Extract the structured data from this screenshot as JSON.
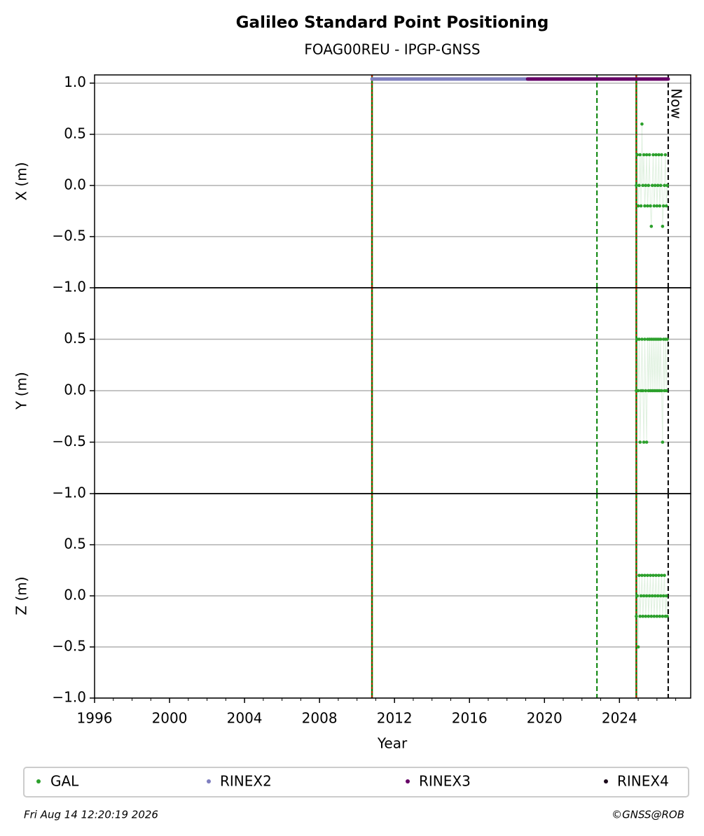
{
  "chart_data": {
    "type": "scatter",
    "title": "Galileo Standard Point Positioning",
    "subtitle": "FOAG00REU - IPGP-GNSS",
    "xlabel": "Year",
    "xlim": [
      1996,
      2027.8
    ],
    "xticks": [
      1996,
      2000,
      2004,
      2008,
      2012,
      2016,
      2020,
      2024
    ],
    "xminor_step": 1,
    "grid": true,
    "x": [
      2024.9,
      2024.95,
      2025.0,
      2025.05,
      2025.1,
      2025.15,
      2025.2,
      2025.25,
      2025.3,
      2025.35,
      2025.4,
      2025.45,
      2025.5,
      2025.55,
      2025.6,
      2025.65,
      2025.7,
      2025.75,
      2025.8,
      2025.85,
      2025.9,
      2025.95,
      2026.0,
      2026.05,
      2026.1,
      2026.15,
      2026.2,
      2026.25,
      2026.3,
      2026.35,
      2026.4,
      2026.45,
      2026.5,
      2026.55
    ],
    "panels": [
      {
        "ylabel": "X (m)",
        "ylim": [
          -1,
          1.08
        ],
        "yticks": [
          {
            "value": -1,
            "label": "−1.0"
          },
          {
            "value": -0.5,
            "label": "−0.5"
          },
          {
            "value": 0,
            "label": "0.0"
          },
          0.5,
          {
            "value": 1,
            "label": "1.0"
          }
        ],
        "values": [
          0,
          0.3,
          -0.2,
          0,
          0.3,
          -0.2,
          0.6,
          0,
          0.3,
          -0.2,
          0,
          0.3,
          -0.2,
          0,
          0.3,
          -0.2,
          -0.4,
          0,
          0.3,
          -0.2,
          0,
          0.3,
          -0.2,
          0,
          0.3,
          -0.2,
          0,
          0.3,
          -0.4,
          -0.2,
          0,
          0.3,
          -0.2,
          0
        ]
      },
      {
        "ylabel": "Y (m)",
        "ylim": [
          -1,
          1
        ],
        "yticks": [
          {
            "value": -1,
            "label": "−1.0"
          },
          {
            "value": -0.5,
            "label": "−0.5"
          },
          {
            "value": 0,
            "label": "0.0"
          },
          0.5
        ],
        "values": [
          0,
          0.5,
          0,
          0.5,
          -0.5,
          0,
          0.5,
          0,
          -0.5,
          0.5,
          0,
          -0.5,
          0.5,
          0,
          0.5,
          0,
          0.5,
          0,
          0.5,
          0,
          0.5,
          0,
          0.5,
          0,
          0.5,
          0,
          0.5,
          0,
          -0.5,
          0.5,
          0,
          0.5,
          0,
          0.5
        ]
      },
      {
        "ylabel": "Z (m)",
        "ylim": [
          -1,
          1
        ],
        "yticks": [
          {
            "value": -1,
            "label": "−1.0"
          },
          {
            "value": -0.5,
            "label": "−0.5"
          },
          {
            "value": 0,
            "label": "0.0"
          },
          0.5
        ],
        "values": [
          -0.2,
          0,
          -0.5,
          0.2,
          -0.2,
          0,
          0.2,
          -0.2,
          0,
          0.2,
          -0.2,
          0,
          0.2,
          -0.2,
          0,
          0.2,
          -0.2,
          0,
          0.2,
          -0.2,
          0,
          0.2,
          -0.2,
          0,
          0.2,
          -0.2,
          0,
          0.2,
          -0.2,
          0,
          0.2,
          -0.2,
          0,
          -0.2
        ]
      }
    ],
    "series": [
      {
        "name": "GAL",
        "color": "#2ca02c"
      },
      {
        "name": "RINEX2",
        "color": "#7f7fbf",
        "x": [
          2010.8,
          2022.8
        ],
        "y": 1.04
      },
      {
        "name": "RINEX3",
        "color": "#660066",
        "x": [
          2019.1,
          2026.6
        ],
        "y": 1.04
      },
      {
        "name": "RINEX4",
        "color": "#1a0a1a"
      }
    ],
    "events": [
      {
        "x": 2010.8,
        "color": "#008000",
        "color2": "#ff0000"
      },
      {
        "x": 2022.8,
        "color": "#008000"
      },
      {
        "x": 2024.9,
        "color": "#008000",
        "color2": "#ff0000"
      },
      {
        "x": 2026.6,
        "color": "#000000",
        "label": "Now"
      }
    ],
    "footer_left": "Fri Aug 14 12:20:19 2026",
    "footer_right": "©GNSS@ROB"
  }
}
